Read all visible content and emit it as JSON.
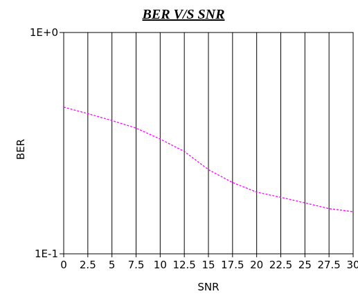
{
  "chart_data": {
    "type": "line",
    "title": "BER V/S SNR",
    "xlabel": "SNR",
    "ylabel": "BER",
    "x_ticks": [
      "0",
      "2.5",
      "5",
      "7.5",
      "10",
      "12.5",
      "15",
      "17.5",
      "20",
      "22.5",
      "25",
      "27.5",
      "30"
    ],
    "y_ticks": [
      "1E-1",
      "1E+0"
    ],
    "xlim": [
      0,
      30
    ],
    "ylim": [
      0.1,
      1
    ],
    "y_scale": "log",
    "grid": "vertical",
    "series": [
      {
        "color": "#ff00ff",
        "line_style": "dashed",
        "x": [
          0,
          2.5,
          5,
          7.5,
          10,
          12.5,
          15,
          17.5,
          20,
          22.5,
          25,
          27.5,
          30
        ],
        "y": [
          0.46,
          0.43,
          0.4,
          0.37,
          0.33,
          0.29,
          0.24,
          0.21,
          0.19,
          0.18,
          0.17,
          0.16,
          0.155
        ]
      }
    ]
  }
}
